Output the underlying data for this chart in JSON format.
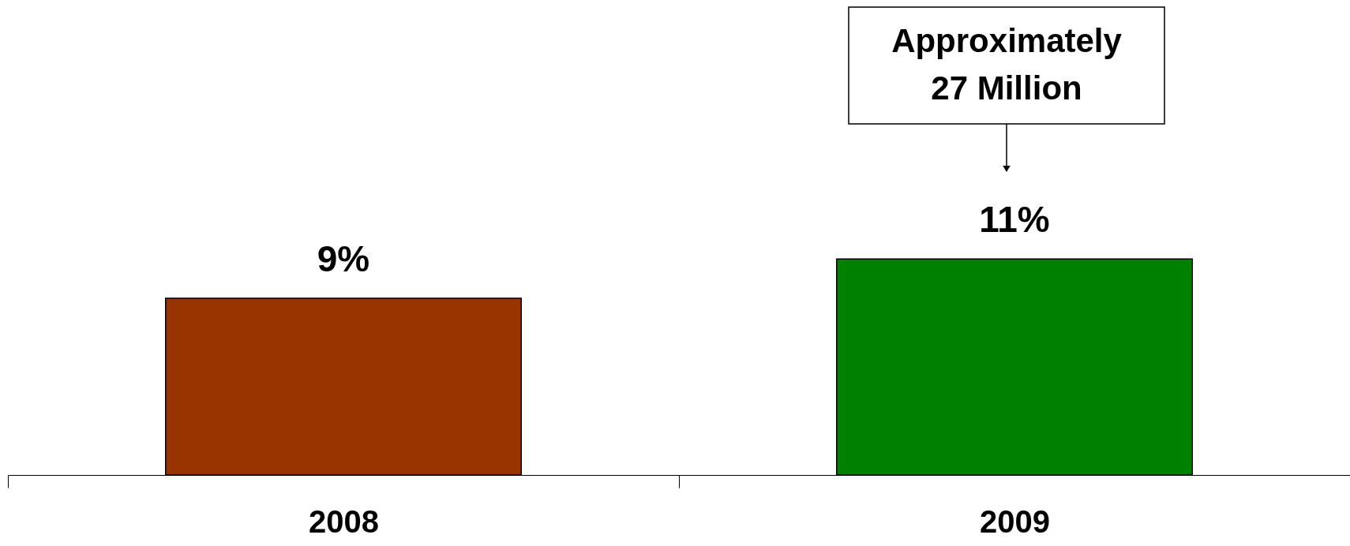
{
  "chart_data": {
    "type": "bar",
    "categories": [
      "2008",
      "2009"
    ],
    "values": [
      9,
      11
    ],
    "colors": [
      "#993300",
      "#008000"
    ],
    "value_labels": [
      "9%",
      "11%"
    ],
    "annotations": [
      "Approximately 27 Million"
    ],
    "grid": false
  }
}
